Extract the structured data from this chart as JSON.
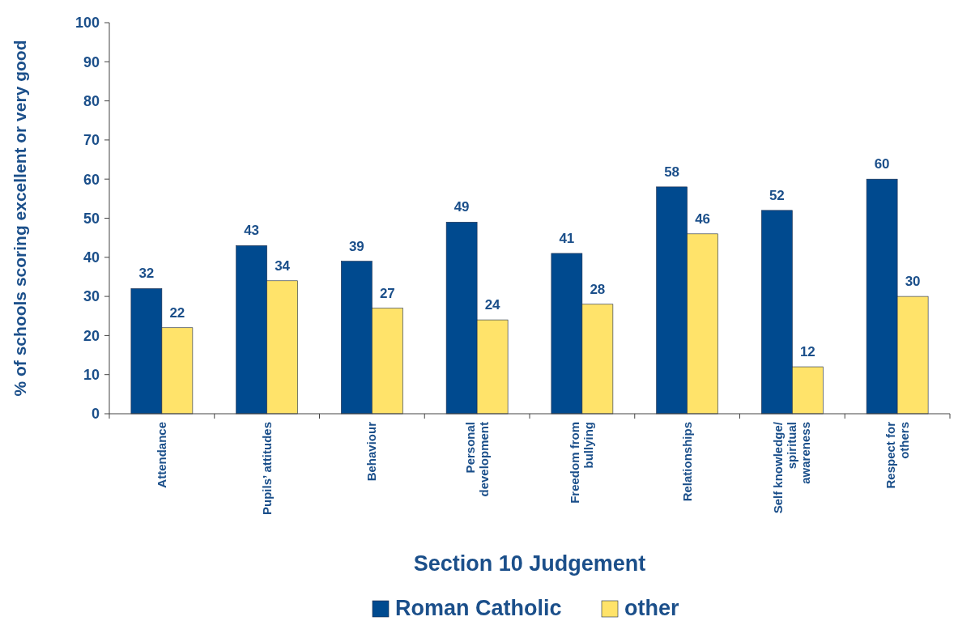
{
  "chart_data": {
    "type": "bar",
    "xlabel": "Section 10 Judgement",
    "ylabel": "% of schools scoring excellent or very good",
    "categories": [
      "Attendance",
      "Pupils’ attitudes",
      "Behaviour",
      "Personal\ndevelopment",
      "Freedom from\nbullying",
      "Relationships",
      "Self knowledge/\nspiritual\nawareness",
      "Respect for\nothers"
    ],
    "series": [
      {
        "name": "Roman Catholic",
        "color": "#004a8f",
        "values": [
          32,
          43,
          39,
          49,
          41,
          58,
          52,
          60
        ]
      },
      {
        "name": "other",
        "color": "#ffe36a",
        "values": [
          22,
          34,
          27,
          24,
          28,
          46,
          12,
          30
        ]
      }
    ],
    "ylim": [
      0,
      100
    ],
    "yticks": [
      0,
      10,
      20,
      30,
      40,
      50,
      60,
      70,
      80,
      90,
      100
    ],
    "data_labels": true,
    "legend": "bottom",
    "grid": false
  }
}
